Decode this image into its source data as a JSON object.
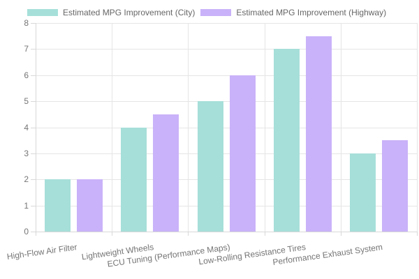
{
  "chart_data": {
    "type": "bar",
    "title": "",
    "xlabel": "",
    "ylabel": "",
    "categories": [
      "High-Flow Air Filter",
      "Lightweight Wheels",
      "ECU Tuning (Performance Maps)",
      "Low-Rolling Resistance Tires",
      "Performance Exhaust System"
    ],
    "series": [
      {
        "name": "Estimated MPG Improvement (City)",
        "color": "#a6dfd9",
        "values": [
          2,
          4,
          5,
          7,
          3
        ]
      },
      {
        "name": "Estimated MPG Improvement (Highway)",
        "color": "#c9b2f9",
        "values": [
          2,
          4.5,
          6,
          7.5,
          3.5
        ]
      }
    ],
    "ylim": [
      0,
      8
    ],
    "yticks": [
      0,
      1,
      2,
      3,
      4,
      5,
      6,
      7,
      8
    ],
    "grid": true,
    "legend_position": "top"
  },
  "colors": {
    "background": "#ffffff",
    "grid_line": "#e5e5e5",
    "axis_line": "#d8d8d8",
    "tick_label": "#757575",
    "legend_label": "#666666"
  }
}
